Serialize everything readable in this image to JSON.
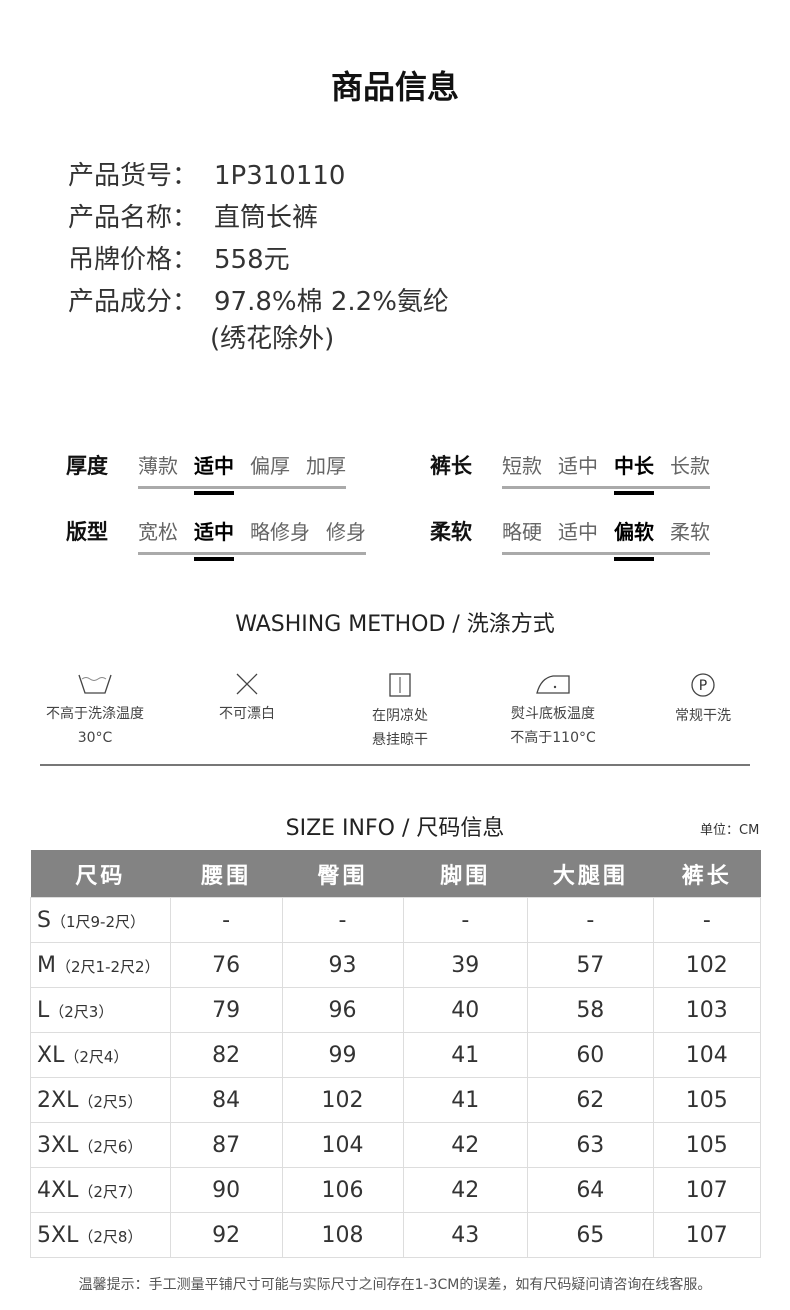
{
  "title": "商品信息",
  "info": [
    {
      "k": "产品货号：",
      "v": "1P310110"
    },
    {
      "k": "产品名称：",
      "v": "直筒长裤"
    },
    {
      "k": "吊牌价格：",
      "v": "558元"
    },
    {
      "k": "产品成分：",
      "v": "97.8%棉 2.2%氨纶",
      "v2": "(绣花除外)"
    }
  ],
  "attributes": [
    {
      "label": "厚度",
      "options": [
        "薄款",
        "适中",
        "偏厚",
        "加厚"
      ],
      "selected": "适中"
    },
    {
      "label": "裤长",
      "options": [
        "短款",
        "适中",
        "中长",
        "长款"
      ],
      "selected": "中长"
    },
    {
      "label": "版型",
      "options": [
        "宽松",
        "适中",
        "略修身",
        "修身"
      ],
      "selected": "适中"
    },
    {
      "label": "柔软",
      "options": [
        "略硬",
        "适中",
        "偏软",
        "柔软"
      ],
      "selected": "偏软"
    }
  ],
  "washing": {
    "title": "WASHING METHOD / 洗涤方式",
    "items": [
      {
        "icon": "wash-tub-icon",
        "l1": "不高于洗涤温度",
        "l2": "30°C"
      },
      {
        "icon": "no-bleach-icon",
        "l1": "不可漂白",
        "l2": ""
      },
      {
        "icon": "line-dry-shade-icon",
        "l1": "在阴凉处",
        "l2": "悬挂晾干"
      },
      {
        "icon": "iron-low-icon",
        "l1": "熨斗底板温度",
        "l2": "不高于110°C"
      },
      {
        "icon": "dry-clean-p-icon",
        "l1": "常规干洗",
        "l2": ""
      }
    ]
  },
  "size": {
    "title": "SIZE INFO / 尺码信息",
    "unit": "单位：CM",
    "headers": [
      "尺码",
      "腰围",
      "臀围",
      "脚围",
      "大腿围",
      "裤长"
    ],
    "rows": [
      {
        "size": "S",
        "note": "（1尺9-2尺）",
        "vals": [
          "-",
          "-",
          "-",
          "-",
          "-"
        ]
      },
      {
        "size": "M",
        "note": "（2尺1-2尺2）",
        "vals": [
          "76",
          "93",
          "39",
          "57",
          "102"
        ]
      },
      {
        "size": "L",
        "note": "（2尺3）",
        "vals": [
          "79",
          "96",
          "40",
          "58",
          "103"
        ]
      },
      {
        "size": "XL",
        "note": "（2尺4）",
        "vals": [
          "82",
          "99",
          "41",
          "60",
          "104"
        ]
      },
      {
        "size": "2XL",
        "note": "（2尺5）",
        "vals": [
          "84",
          "102",
          "41",
          "62",
          "105"
        ]
      },
      {
        "size": "3XL",
        "note": "（2尺6）",
        "vals": [
          "87",
          "104",
          "42",
          "63",
          "105"
        ]
      },
      {
        "size": "4XL",
        "note": "（2尺7）",
        "vals": [
          "90",
          "106",
          "42",
          "64",
          "107"
        ]
      },
      {
        "size": "5XL",
        "note": "（2尺8）",
        "vals": [
          "92",
          "108",
          "43",
          "65",
          "107"
        ]
      }
    ]
  },
  "tip": "温馨提示：手工测量平铺尺寸可能与实际尺寸之间存在1-3CM的误差，如有尺码疑问请咨询在线客服。"
}
